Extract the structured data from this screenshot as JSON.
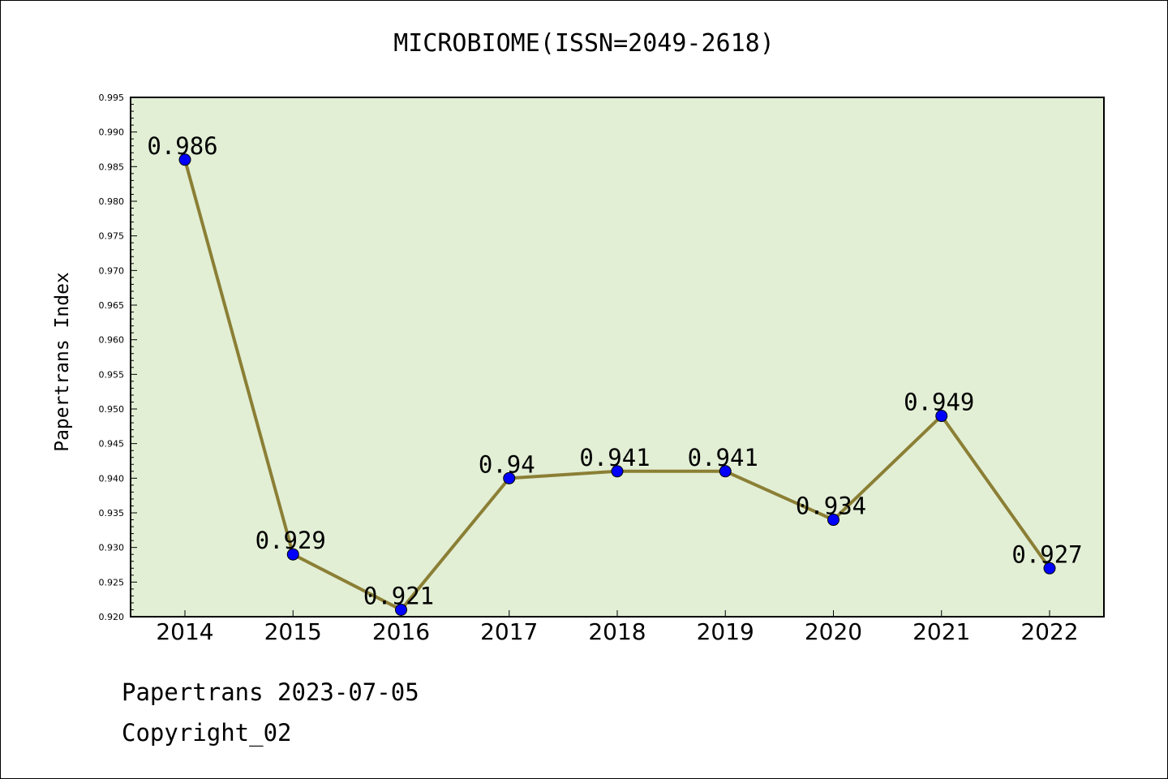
{
  "chart_data": {
    "type": "line",
    "title": "MICROBIOME(ISSN=2049-2618)",
    "xlabel": "",
    "ylabel": "Papertrans Index",
    "x": [
      "2014",
      "2015",
      "2016",
      "2017",
      "2018",
      "2019",
      "2020",
      "2021",
      "2022"
    ],
    "series": [
      {
        "values": [
          0.986,
          0.929,
          0.921,
          0.94,
          0.941,
          0.941,
          0.934,
          0.949,
          0.927
        ],
        "labels": [
          "0.986",
          "0.929",
          "0.921",
          "0.94",
          "0.941",
          "0.941",
          "0.934",
          "0.949",
          "0.927"
        ]
      }
    ],
    "ylim": [
      0.92,
      0.995
    ],
    "yticks": [
      "0.920",
      "0.925",
      "0.930",
      "0.935",
      "0.940",
      "0.945",
      "0.950",
      "0.955",
      "0.960",
      "0.965",
      "0.970",
      "0.975",
      "0.980",
      "0.985",
      "0.990",
      "0.995"
    ],
    "grid": false,
    "colors": {
      "plot_bg": "#e2efd5",
      "line": "#8b7f35",
      "marker": "#0000ff"
    }
  },
  "footer": {
    "line1": "Papertrans 2023-07-05",
    "line2": "Copyright_02"
  }
}
